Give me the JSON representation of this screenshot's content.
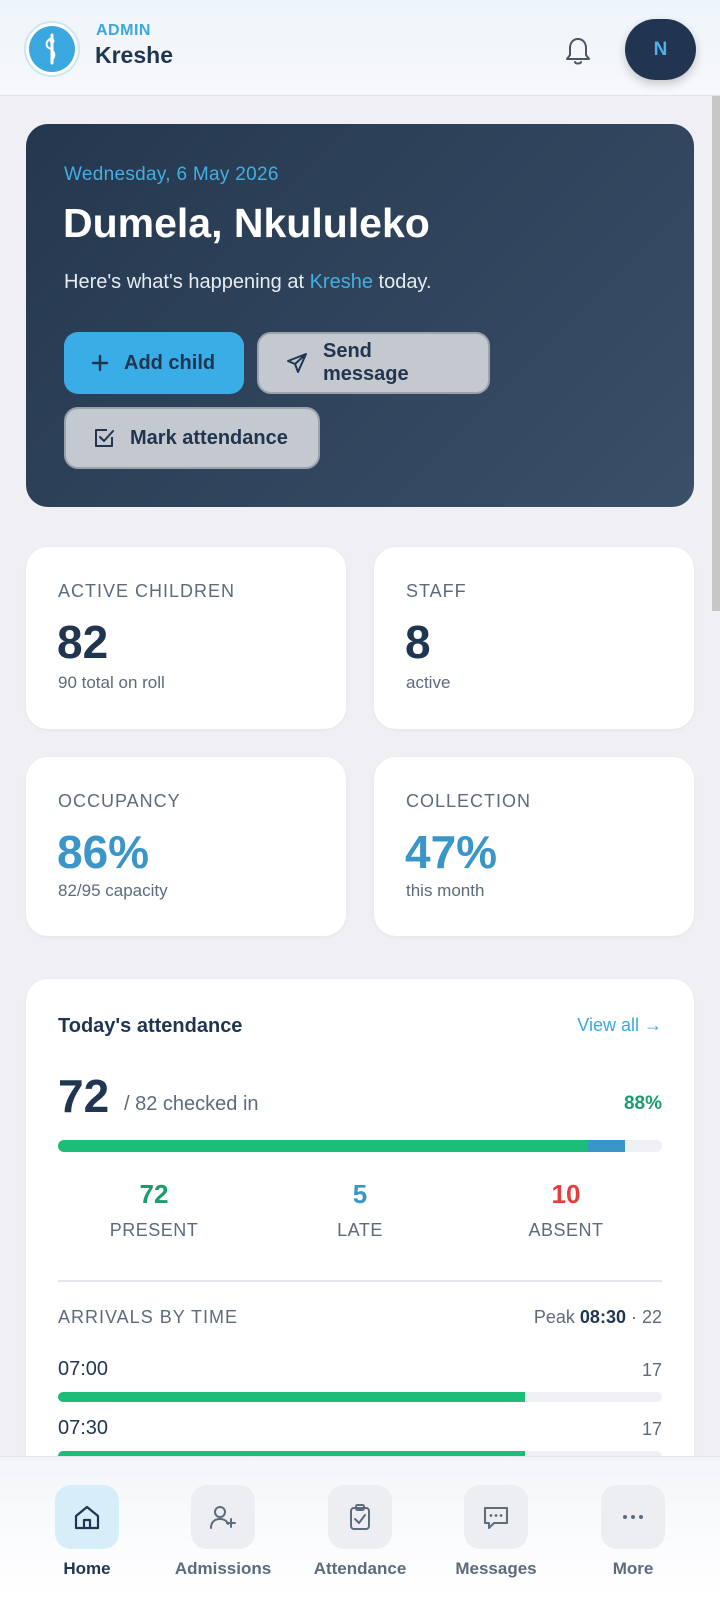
{
  "header": {
    "role": "ADMIN",
    "org_name": "Kreshe",
    "avatar_initial": "N"
  },
  "hero": {
    "date": "Wednesday, 6 May 2026",
    "greeting": "Dumela, Nkululeko",
    "sub_before": "Here's what's happening at ",
    "sub_org": "Kreshe",
    "sub_after": " today.",
    "add_child": "Add child",
    "send_message": "Send message",
    "mark_attendance": "Mark attendance"
  },
  "stats": {
    "active_children": {
      "label": "ACTIVE CHILDREN",
      "value": "82",
      "sub": "90 total on roll"
    },
    "staff": {
      "label": "STAFF",
      "value": "8",
      "sub": "active"
    },
    "occupancy": {
      "label": "OCCUPANCY",
      "value": "86%",
      "sub": "82/95 capacity"
    },
    "collection": {
      "label": "COLLECTION",
      "value": "47%",
      "sub": "this month"
    }
  },
  "attendance": {
    "title": "Today's attendance",
    "view_all": "View all →",
    "checked_in": "72",
    "of_text": "/ 82 checked in",
    "percent": "88%",
    "present_fraction": 0.878,
    "late_fraction": 0.061,
    "present": {
      "value": "72",
      "label": "PRESENT"
    },
    "late": {
      "value": "5",
      "label": "LATE"
    },
    "absent": {
      "value": "10",
      "label": "ABSENT"
    },
    "arrivals_title": "ARRIVALS BY TIME",
    "peak_label": "Peak",
    "peak_time": "08:30",
    "peak_sep": " · ",
    "peak_count": "22",
    "arrivals": [
      {
        "time": "07:00",
        "count": "17",
        "fraction": 0.773
      },
      {
        "time": "07:30",
        "count": "17",
        "fraction": 0.773
      }
    ]
  },
  "colors": {
    "accent": "#3aa8de",
    "navy": "#1f3550",
    "present_green": "#1bbd78",
    "late_blue": "#3a96c8",
    "absent_red": "#e53e3e"
  },
  "nav": {
    "home": "Home",
    "admissions": "Admissions",
    "attendance": "Attendance",
    "messages": "Messages",
    "more": "More"
  }
}
